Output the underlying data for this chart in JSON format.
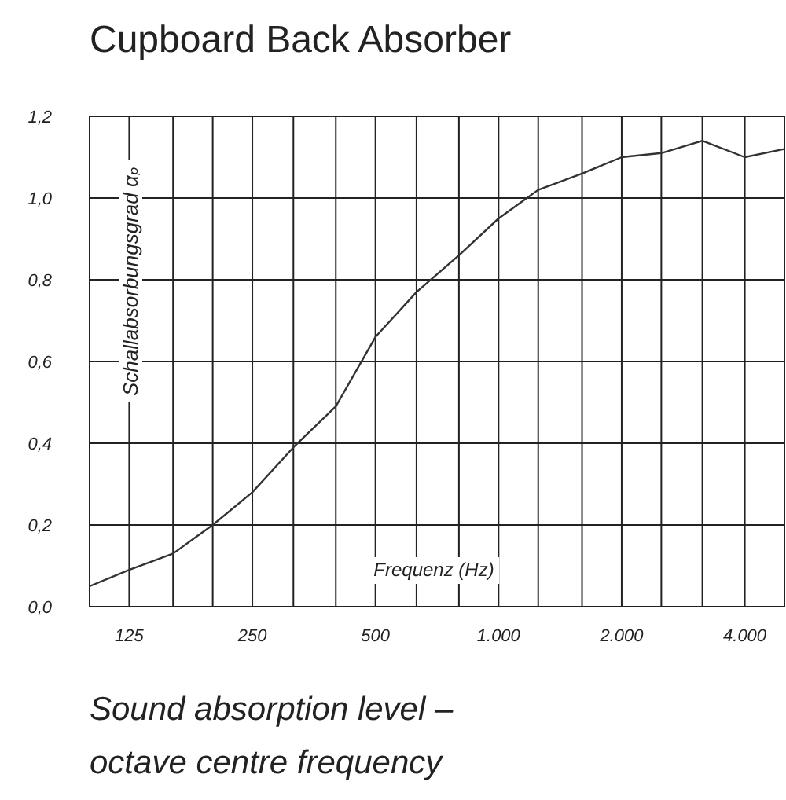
{
  "chart_data": {
    "type": "line",
    "title": "Cupboard Back Absorber",
    "xlabel": "Frequenz (Hz)",
    "ylabel": "Schallabsorbungsgrad αₚ",
    "annotations": [
      "Sound absorption level – octave centre frequency"
    ],
    "x": [
      100,
      125,
      160,
      200,
      250,
      315,
      400,
      500,
      630,
      800,
      1000,
      1250,
      1600,
      2000,
      2500,
      3150,
      4000,
      5000
    ],
    "values": [
      0.05,
      0.09,
      0.13,
      0.2,
      0.28,
      0.39,
      0.49,
      0.66,
      0.77,
      0.86,
      0.95,
      1.02,
      1.06,
      1.1,
      1.11,
      1.14,
      1.1,
      1.12
    ],
    "color": "#333333",
    "xlim": [
      100,
      5000
    ],
    "xticks": [
      {
        "value": 100,
        "label": null
      },
      125,
      {
        "value": 160,
        "label": null
      },
      {
        "value": 200,
        "label": null
      },
      250,
      {
        "value": 315,
        "label": null
      },
      {
        "value": 400,
        "label": null
      },
      500,
      {
        "value": 630,
        "label": null
      },
      {
        "value": 800,
        "label": null
      },
      {
        "value": 1000,
        "label": "1.000"
      },
      {
        "value": 1250,
        "label": null
      },
      {
        "value": 1600,
        "label": null
      },
      {
        "value": 2000,
        "label": "2.000"
      },
      {
        "value": 2500,
        "label": null
      },
      {
        "value": 3150,
        "label": null
      },
      {
        "value": 4000,
        "label": "4.000"
      },
      {
        "value": 5000,
        "label": null
      }
    ],
    "ylim": [
      0,
      1.2
    ],
    "yticks": [
      {
        "value": 0,
        "label": "0,0"
      },
      {
        "value": 0.2,
        "label": "0,2"
      },
      {
        "value": 0.4,
        "label": "0,4"
      },
      {
        "value": 0.6,
        "label": "0,6"
      },
      {
        "value": 0.8,
        "label": "0,8"
      },
      {
        "value": 1,
        "label": "1,0"
      },
      {
        "value": 1.2,
        "label": "1,2"
      }
    ],
    "log": "x",
    "grid": true
  }
}
